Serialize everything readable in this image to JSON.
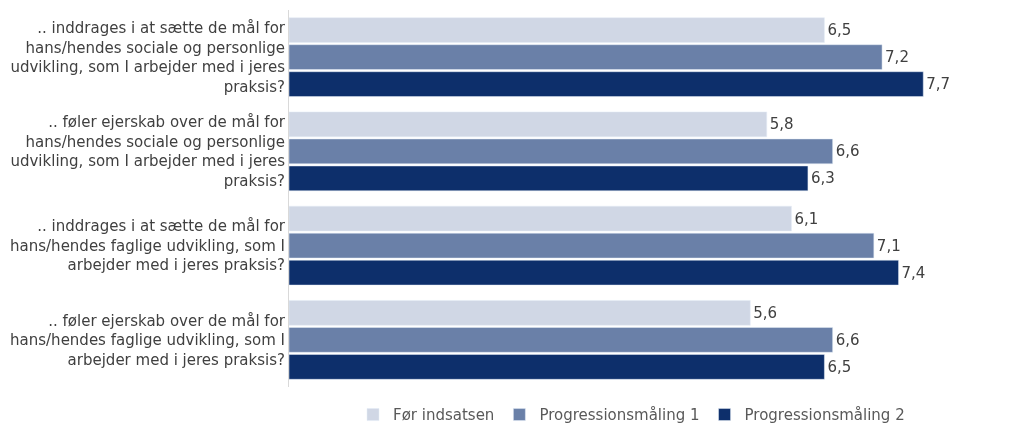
{
  "chart_data": {
    "type": "bar",
    "orientation": "horizontal",
    "categories": [
      ".. inddrages i at sætte de mål for hans/hendes sociale og personlige udvikling, som I arbejder med i jeres praksis?",
      ".. føler ejerskab over de mål for hans/hendes sociale og personlige udvikling, som I arbejder med i jeres praksis?",
      ".. inddrages i at sætte de mål for hans/hendes faglige udvikling, som I arbejder med i jeres praksis?",
      ".. føler ejerskab over de mål for hans/hendes faglige udvikling, som I arbejder med i jeres praksis?"
    ],
    "series": [
      {
        "name": "Før indsatsen",
        "color": "#d0d7e5",
        "values": [
          6.5,
          5.8,
          6.1,
          5.6
        ],
        "value_labels": [
          "6,5",
          "5,8",
          "6,1",
          "5,6"
        ]
      },
      {
        "name": "Progressionsmåling 1",
        "color": "#6a80a8",
        "values": [
          7.2,
          6.6,
          7.1,
          6.6
        ],
        "value_labels": [
          "7,2",
          "6,6",
          "7,1",
          "6,6"
        ]
      },
      {
        "name": "Progressionsmåling 2",
        "color": "#0d2f6b",
        "values": [
          7.7,
          6.3,
          7.4,
          6.5
        ],
        "value_labels": [
          "7,7",
          "6,3",
          "7,4",
          "6,5"
        ]
      }
    ],
    "legend": "bottom"
  }
}
